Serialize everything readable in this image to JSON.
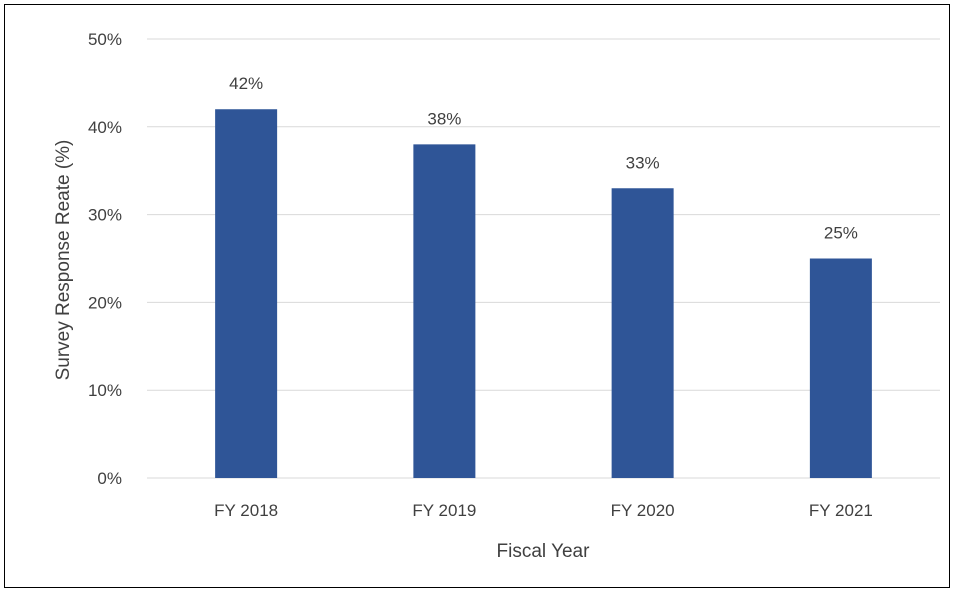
{
  "chart_data": {
    "type": "bar",
    "title": "",
    "xlabel": "Fiscal Year",
    "ylabel": "Survey Response Reate (%)",
    "categories": [
      "FY 2018",
      "FY 2019",
      "FY 2020",
      "FY 2021"
    ],
    "values": [
      42,
      38,
      33,
      25
    ],
    "data_labels": [
      "42%",
      "38%",
      "33%",
      "25%"
    ],
    "ylim": [
      0,
      50
    ],
    "yticks": [
      0,
      10,
      20,
      30,
      40,
      50
    ],
    "ytick_labels": [
      "0%",
      "10%",
      "20%",
      "30%",
      "40%",
      "50%"
    ],
    "grid": true,
    "legend": "none",
    "colors": {
      "bar": "#2F5597",
      "grid": "#D9D9D9",
      "text": "#404040"
    }
  }
}
